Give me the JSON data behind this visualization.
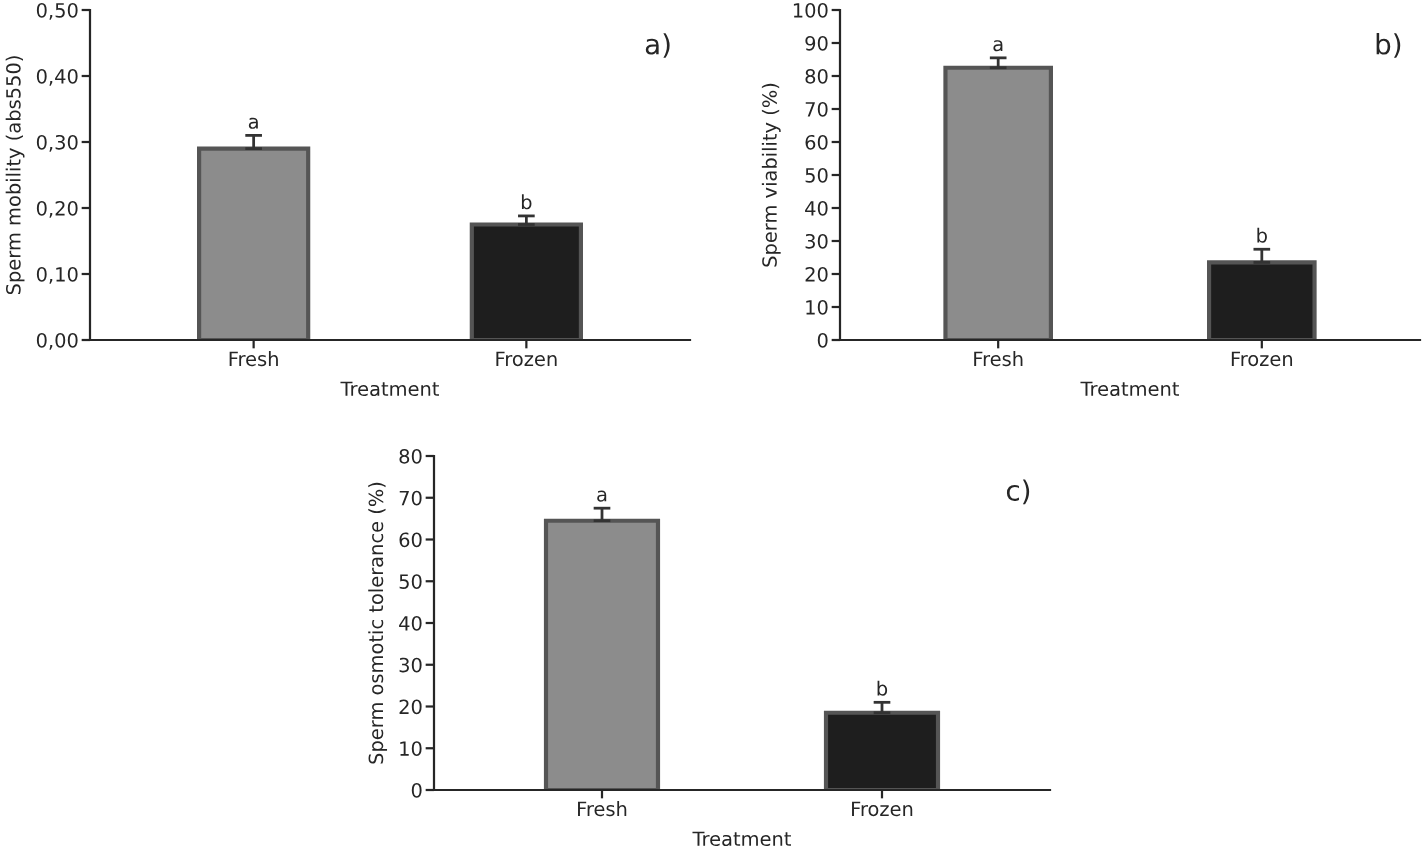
{
  "chart_data": [
    {
      "type": "bar",
      "title": "a)",
      "xlabel": "Treatment",
      "ylabel": "Sperm mobility (abs550)",
      "categories": [
        "Fresh",
        "Frozen"
      ],
      "values": [
        0.29,
        0.175
      ],
      "colors": [
        "#8c8c8c",
        "#1e1e1e"
      ],
      "errors": [
        [
          0.29,
          0.31
        ],
        [
          0.175,
          0.188
        ]
      ],
      "ylim": [
        0,
        0.5
      ],
      "yticks": [
        {
          "value": 0,
          "label": "0,00"
        },
        {
          "value": 0.1,
          "label": "0,10"
        },
        {
          "value": 0.2,
          "label": "0,20"
        },
        {
          "value": 0.3,
          "label": "0,30"
        },
        {
          "value": 0.4,
          "label": "0,40"
        },
        {
          "value": 0.5,
          "label": "0,50"
        }
      ],
      "grid": false,
      "annotations": [
        {
          "text": "a",
          "x": "Fresh",
          "y": 0.31
        },
        {
          "text": "b",
          "x": "Frozen",
          "y": 0.188
        }
      ]
    },
    {
      "type": "bar",
      "title": "b)",
      "xlabel": "Treatment",
      "ylabel": "Sperm viability (%)",
      "categories": [
        "Fresh",
        "Frozen"
      ],
      "values": [
        82.5,
        23.5
      ],
      "colors": [
        "#8c8c8c",
        "#1e1e1e"
      ],
      "errors": [
        [
          82.5,
          85.5
        ],
        [
          23.5,
          27.5
        ]
      ],
      "ylim": [
        0,
        100
      ],
      "yticks": [
        0,
        10,
        20,
        30,
        40,
        50,
        60,
        70,
        80,
        90,
        100
      ],
      "grid": false,
      "annotations": [
        {
          "text": "a",
          "x": "Fresh",
          "y": 85.5
        },
        {
          "text": "b",
          "x": "Frozen",
          "y": 27.5
        }
      ]
    },
    {
      "type": "bar",
      "title": "c)",
      "xlabel": "Treatment",
      "ylabel": "Sperm osmotic tolerance (%)",
      "categories": [
        "Fresh",
        "Frozen"
      ],
      "values": [
        64.5,
        18.5
      ],
      "colors": [
        "#8c8c8c",
        "#1e1e1e"
      ],
      "errors": [
        [
          64.5,
          67.5
        ],
        [
          18.5,
          21
        ]
      ],
      "ylim": [
        0,
        80
      ],
      "yticks": [
        0,
        10,
        20,
        30,
        40,
        50,
        60,
        70,
        80
      ],
      "grid": false,
      "annotations": [
        {
          "text": "a",
          "x": "Fresh",
          "y": 67.5
        },
        {
          "text": "b",
          "x": "Frozen",
          "y": 21
        }
      ]
    }
  ]
}
